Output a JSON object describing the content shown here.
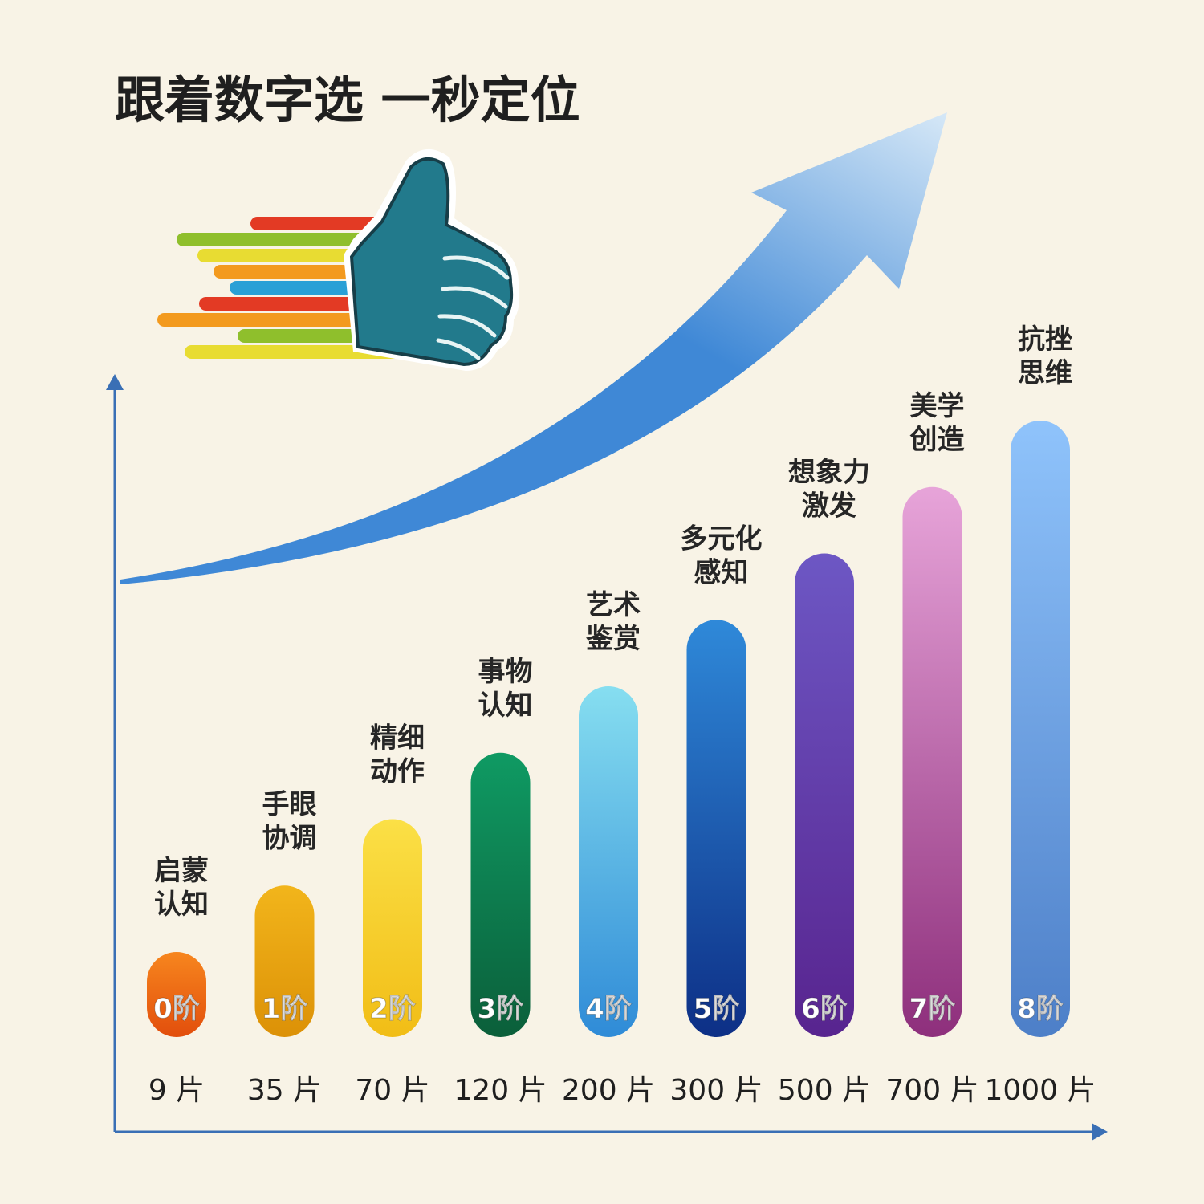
{
  "title": "跟着数字选 一秒定位",
  "chart_data": {
    "type": "bar",
    "title": "跟着数字选 一秒定位",
    "categories": [
      "9 片",
      "35 片",
      "70 片",
      "120 片",
      "200 片",
      "300 片",
      "500 片",
      "700 片",
      "1000 片"
    ],
    "levels": [
      "0阶",
      "1阶",
      "2阶",
      "3阶",
      "4阶",
      "5阶",
      "6阶",
      "7阶",
      "8阶"
    ],
    "skills": [
      [
        "启蒙",
        "认知"
      ],
      [
        "手眼",
        "协调"
      ],
      [
        "精细",
        "动作"
      ],
      [
        "事物",
        "认知"
      ],
      [
        "艺术",
        "鉴赏"
      ],
      [
        "多元化",
        "感知"
      ],
      [
        "想象力",
        "激发"
      ],
      [
        "美学",
        "创造"
      ],
      [
        "抗挫",
        "思维"
      ]
    ],
    "values": [
      0,
      1,
      2,
      3,
      4,
      5,
      6,
      7,
      8
    ],
    "ylim": [
      0,
      8
    ],
    "xlabel": "",
    "ylabel": "",
    "grid": false,
    "legend": "none",
    "bar_colors": [
      [
        "#f7861e",
        "#e24e0c"
      ],
      [
        "#f2b51b",
        "#dc9107"
      ],
      [
        "#fbe046",
        "#f1bd16"
      ],
      [
        "#0f9a63",
        "#0b5f3a"
      ],
      [
        "#86def0",
        "#2f8bd7"
      ],
      [
        "#2f89d9",
        "#0d2f86"
      ],
      [
        "#6d57c4",
        "#58248f"
      ],
      [
        "#e7a4d9",
        "#8e2f7c"
      ],
      [
        "#8fc3fb",
        "#4d7fc8"
      ]
    ],
    "trend_arrow_color": "#3f88d6"
  },
  "thumb": {
    "stripe_colors": [
      "#e33a24",
      "#8fbf2c",
      "#e8dc32",
      "#f39a1e",
      "#2aa0d6",
      "#e33a24",
      "#f39a1e",
      "#8fbf2c",
      "#e8dc32"
    ],
    "hand_color": "#227a8c"
  }
}
